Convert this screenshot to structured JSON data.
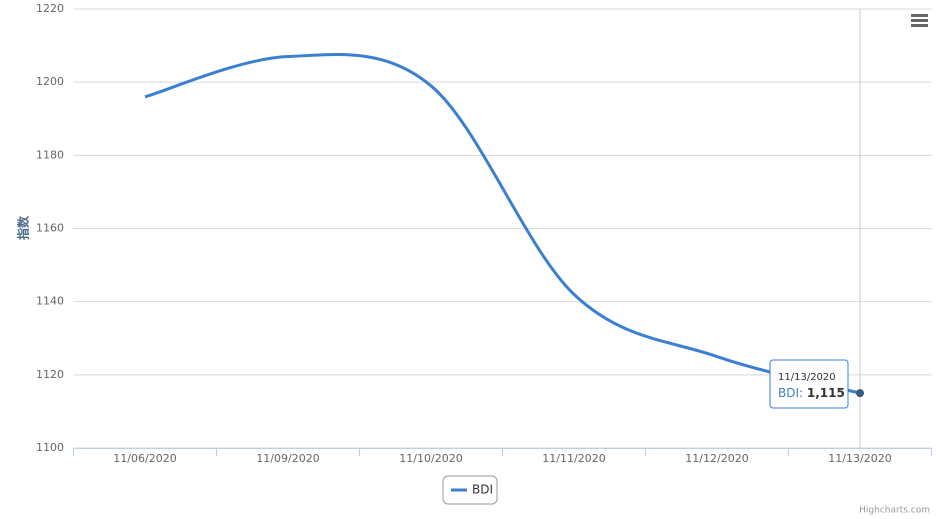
{
  "chart_data": {
    "type": "line",
    "y_title": "指数",
    "categories": [
      "11/06/2020",
      "11/09/2020",
      "11/10/2020",
      "11/11/2020",
      "11/12/2020",
      "11/13/2020"
    ],
    "series": [
      {
        "name": "BDI",
        "color": "#3a7fd0",
        "values": [
          1196,
          1207,
          1199,
          1142,
          1125,
          1115
        ]
      }
    ],
    "ylim": [
      1100,
      1220
    ],
    "yticks": [
      1100,
      1120,
      1140,
      1160,
      1180,
      1200,
      1220
    ],
    "grid": true,
    "smooth": true,
    "tooltip": {
      "value_label": "1,115"
    },
    "credits": "Highcharts.com"
  }
}
